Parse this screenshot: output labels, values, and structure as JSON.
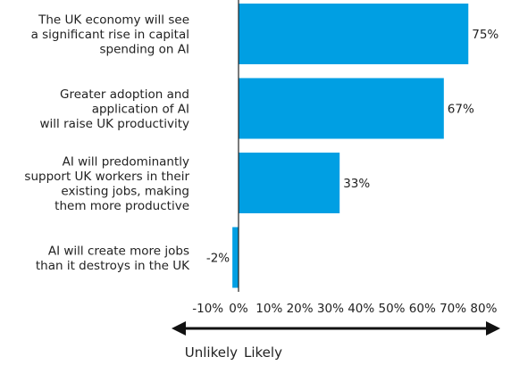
{
  "chart_data": {
    "type": "bar",
    "orientation": "horizontal",
    "categories": [
      [
        "The UK economy will see",
        "a significant rise in capital",
        "spending on AI"
      ],
      [
        "Greater adoption and",
        "application of AI",
        "will raise UK productivity"
      ],
      [
        "AI will predominantly",
        "support UK workers in their",
        "existing jobs, making",
        "them more productive"
      ],
      [
        "AI will create more jobs",
        "than it destroys in the UK"
      ]
    ],
    "values": [
      75,
      67,
      33,
      -2
    ],
    "value_labels": [
      "75%",
      "67%",
      "33%",
      "-2%"
    ],
    "xlim": [
      -10,
      80
    ],
    "xticks": [
      -10,
      0,
      10,
      20,
      30,
      40,
      50,
      60,
      70,
      80
    ],
    "xtick_labels": [
      "-10%",
      "0%",
      "10%",
      "20%",
      "30%",
      "40%",
      "50%",
      "60%",
      "70%",
      "80%"
    ],
    "grid": false,
    "bar_color": "#009fe3"
  },
  "direction": {
    "left_label": "Unlikely",
    "right_label": "Likely"
  },
  "colors": {
    "bar": "#009fe3",
    "axis": "#222222",
    "arrow": "#111111"
  }
}
